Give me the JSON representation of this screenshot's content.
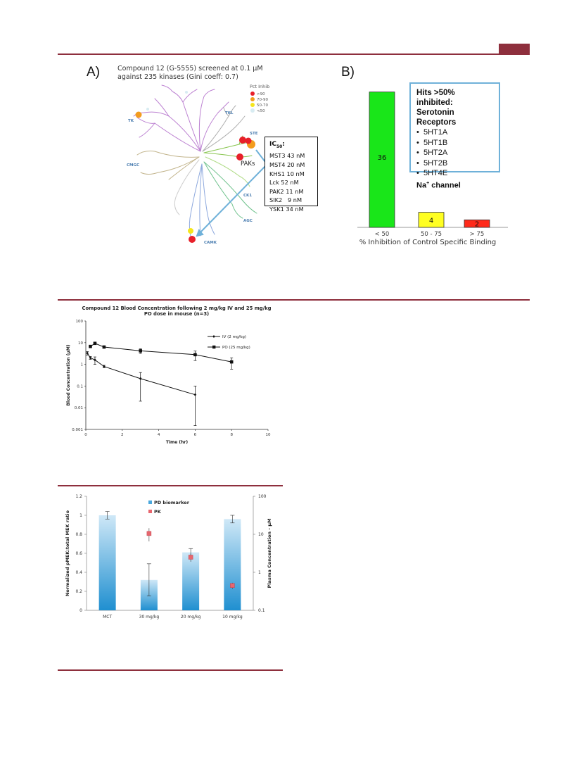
{
  "colors": {
    "rule": "#8e2f3d",
    "bar_green": "#19e619",
    "bar_yellow": "#ffff22",
    "bar_red": "#ff2a1a",
    "pd_bar": "#4aa8dd",
    "pk_marker": "#e8666e",
    "highlight_blue": "#6fb1d9"
  },
  "panel_a": {
    "letter": "A)",
    "title_line1": "Compound 12 (G-5555) screened at 0.1 µM",
    "title_line2": "against 235 kinases (Gini coeff: 0.7)",
    "legend": {
      "title": "Pct Inhib",
      "items": [
        {
          "label": ">90",
          "color": "#e8202a"
        },
        {
          "label": "70-90",
          "color": "#f39c1e"
        },
        {
          "label": "50-70",
          "color": "#f5e61d"
        },
        {
          "label": "<50",
          "color": "#d8ecf2"
        }
      ]
    },
    "group_labels": {
      "tk": "TK",
      "tkl": "TKL",
      "ste": "STE",
      "cmgc": "CMGC",
      "ck1": "CK1",
      "agc": "AGC",
      "camk": "CAMK"
    },
    "paks_label": "PAKs",
    "ic50": {
      "header": "IC",
      "sub": "50",
      "colon": ":",
      "rows": [
        "MST3 43 nM",
        "MST4 20 nM",
        "KHS1 10 nM",
        "Lck 52 nM",
        "PAK2 11 nM",
        "SIK2   9 nM",
        "YSK1 34 nM"
      ]
    }
  },
  "panel_b": {
    "letter": "B)",
    "hits_title1": "Hits >50% inhibited:",
    "hits_title2": "Serotonin Receptors",
    "hits_items": [
      "5HT1A",
      "5HT1B",
      "5HT2A",
      "5HT2B",
      "5HT4E"
    ],
    "na_prefix": "Na",
    "na_sup": "+",
    "na_suffix": " channel"
  },
  "chart_data": [
    {
      "type": "bar",
      "categories": [
        "< 50",
        "50 - 75",
        "> 75"
      ],
      "values": [
        36,
        4,
        2
      ],
      "colors": [
        "#19e619",
        "#ffff22",
        "#ff2a1a"
      ],
      "xlabel": "% Inhibition of Control Specific Binding",
      "ylim": [
        0,
        38
      ]
    },
    {
      "type": "line",
      "title": "Compound 12 Blood Concentration following 2 mg/kg IV and 25 mg/kg PO dose in mouse (n=3)",
      "title_line1": "Compound 12 Blood Concentration following 2 mg/kg IV and 25 mg/kg",
      "title_line2": "PO dose in mouse (n=3)",
      "xlabel": "Time (hr)",
      "ylabel": "Blood Concentration (µM)",
      "xlim": [
        0,
        10
      ],
      "ylim": [
        0.001,
        100
      ],
      "yscale": "log",
      "x_ticks": [
        "0",
        "2",
        "4",
        "6",
        "8",
        "10"
      ],
      "y_ticks": [
        "0.001",
        "0.01",
        "0.1",
        "1",
        "10",
        "100"
      ],
      "series": [
        {
          "name": "IV (2 mg/kg)",
          "marker": "diamond",
          "x": [
            0.083,
            0.25,
            0.5,
            1,
            3,
            6
          ],
          "y": [
            3.3,
            2.0,
            1.6,
            0.8,
            0.22,
            0.04
          ],
          "err": [
            0.6,
            0.3,
            0.6,
            0.1,
            0.2,
            0.06
          ]
        },
        {
          "name": "PO (25 mg/kg)",
          "marker": "square",
          "x": [
            0.25,
            0.5,
            1,
            3,
            6,
            8
          ],
          "y": [
            6.7,
            9.3,
            6.3,
            4.2,
            2.8,
            1.3
          ],
          "err": [
            0.6,
            1.0,
            0.6,
            1.0,
            1.3,
            0.7
          ]
        }
      ]
    },
    {
      "type": "bar",
      "categories": [
        "MCT",
        "30 mg/kg",
        "20 mg/kg",
        "10 mg/kg"
      ],
      "ylabel": "Normalized pMEK:total MEK ratio",
      "y2label": "Plasma Concentration - µM",
      "ylim": [
        0,
        1.2
      ],
      "y2lim": [
        0.1,
        100
      ],
      "y2scale": "log",
      "y_ticks": [
        "0",
        "0.2",
        "0.4",
        "0.6",
        "0.8",
        "1",
        "1.2"
      ],
      "y2_ticks": [
        "0.1",
        "1",
        "10",
        "100"
      ],
      "series": [
        {
          "name": "PD biomarker",
          "axis": "left",
          "values": [
            1.0,
            0.32,
            0.61,
            0.96
          ],
          "err": [
            0.04,
            0.17,
            0.04,
            0.04
          ]
        },
        {
          "name": "PK",
          "axis": "right",
          "values": [
            null,
            10.5,
            2.5,
            0.45
          ],
          "err": [
            null,
            4.0,
            0.6,
            0.08
          ]
        }
      ]
    }
  ]
}
